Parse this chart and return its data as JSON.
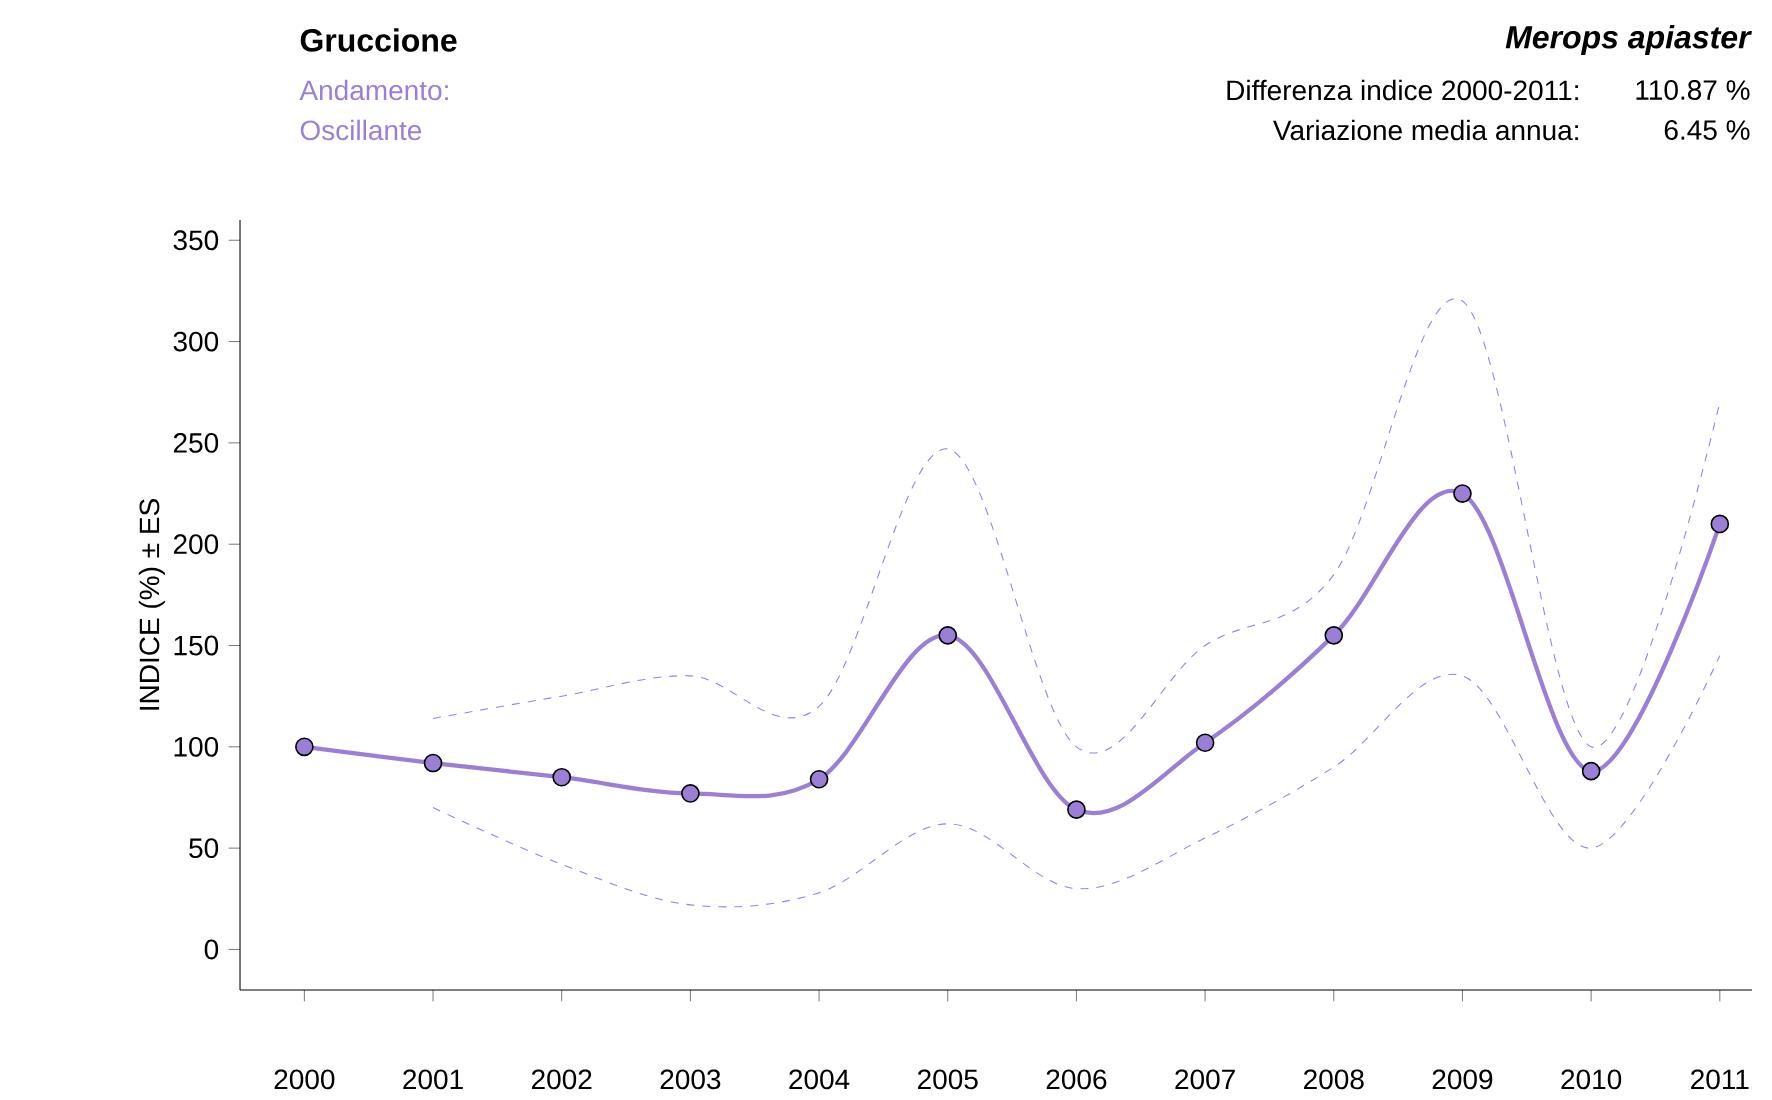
{
  "chart_data": {
    "type": "line",
    "title": "Gruccione",
    "subtitle": "Merops apiaster",
    "ylabel": "INDICE (%) ± ES",
    "annotations": [
      "Andamento:",
      "Oscillante",
      "Differenza indice 2000-2011:",
      "110.87 %",
      "Variazione media annua:",
      "6.45 %"
    ],
    "categories": [
      "2000",
      "2001",
      "2002",
      "2003",
      "2004",
      "2005",
      "2006",
      "2007",
      "2008",
      "2009",
      "2010",
      "2011"
    ],
    "series": [
      {
        "color": "#9b7fd6",
        "values": [
          100,
          92,
          85,
          77,
          84,
          155,
          69,
          102,
          155,
          225,
          88,
          210
        ]
      },
      {
        "color": "#9b7fd6",
        "line_style": "dashed",
        "marker": "none",
        "values": [
          null,
          70,
          42,
          22,
          28,
          62,
          30,
          55,
          90,
          135,
          50,
          145
        ]
      },
      {
        "color": "#9b7fd6",
        "line_style": "dashed",
        "marker": "none",
        "values": [
          null,
          114,
          125,
          135,
          120,
          247,
          100,
          150,
          185,
          320,
          100,
          270
        ]
      }
    ],
    "ylim": [
      -20,
      360
    ],
    "yticks": [
      0,
      50,
      100,
      150,
      200,
      250,
      300,
      350
    ],
    "grid": false,
    "marker": "circle",
    "line_style": "solid"
  }
}
